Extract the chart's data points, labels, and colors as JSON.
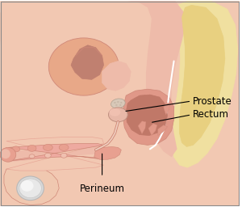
{
  "bg": "#ffffff",
  "skin_light": "#f2c8b2",
  "skin_mid": "#eebbaa",
  "skin_dark": "#e8a898",
  "bone_outer": "#f0e0a0",
  "bone_inner": "#e8d080",
  "muscle_pink": "#e8a090",
  "muscle_dark": "#d08878",
  "rectum_wall": "#e09888",
  "rectum_lumen": "#c07868",
  "bladder_fill": "#e8a888",
  "bladder_dark": "#c08070",
  "penis_outer": "#eeaaa0",
  "penis_stripe": "#d09080",
  "testis_white": "#e8e8e8",
  "testis_hi": "#f5f5f5",
  "scrotum_fill": "#f0c8b0",
  "prostate_fill": "#e8b8a8",
  "semves_fill": "#d8c8b8",
  "annot_color": "#000000",
  "label_prostate": "Prostate",
  "label_rectum": "Rectum",
  "label_perineum": "Perineum",
  "label_fs": 8.5,
  "figsize": [
    3.0,
    2.56
  ],
  "dpi": 100
}
